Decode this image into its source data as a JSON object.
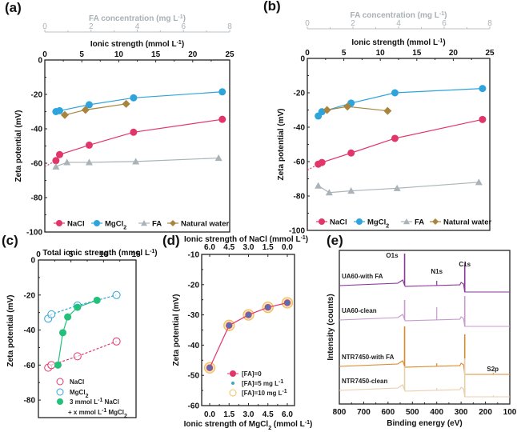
{
  "colors": {
    "nacl": "#e2366a",
    "mgcl2": "#2ea4dc",
    "fa": "#a9b3b8",
    "natural_water": "#a8843c",
    "mix": "#22c07a",
    "fa5": "#3aa6c8",
    "fa10": "#f0c060",
    "fa0_marker": "#5a6fb0",
    "ua60_with_fa": "#8a3a9a",
    "ua60_clean": "#c89ad0",
    "ntr_with_fa": "#d98b30",
    "ntr_clean": "#e8cfae"
  },
  "chart_data": [
    {
      "panel": "(a)",
      "type": "line",
      "xlabel": "Ionic strength (mmol L-1)",
      "xlabel_parts": [
        "Ionic strength (mmol L",
        "-1",
        ")"
      ],
      "x2label_parts": [
        "FA concentration (mg L",
        "-1",
        ")"
      ],
      "ylabel": "Zeta potential (mV)",
      "xlim": [
        0,
        25
      ],
      "x2lim": [
        0,
        8
      ],
      "ylim": [
        -100,
        0
      ],
      "xticks": [
        "0",
        "5",
        "10",
        "15",
        "20",
        "25"
      ],
      "x2ticks": [
        "0",
        "2",
        "4",
        "6",
        "8"
      ],
      "yticks": [
        "0",
        "-20",
        "-40",
        "-60",
        "-80",
        "-100"
      ],
      "legend_position": "bottom",
      "legend": [
        "NaCl",
        "MgCl2",
        "FA",
        "Natural water"
      ],
      "series": [
        {
          "name": "NaCl",
          "x": [
            1.5,
            2,
            6,
            12,
            24
          ],
          "y": [
            -58.5,
            -55,
            -49.5,
            -42,
            -34.5
          ]
        },
        {
          "name": "MgCl2",
          "x": [
            1.5,
            2,
            6,
            12,
            24
          ],
          "y": [
            -30,
            -29.5,
            -26,
            -22,
            -18.5
          ]
        },
        {
          "name": "FA",
          "x": [
            1.5,
            3,
            6,
            12.3,
            23.5
          ],
          "y": [
            -62,
            -59.5,
            -59.5,
            -59,
            -57
          ]
        },
        {
          "name": "Natural water",
          "x": [
            2.7,
            5.5,
            11
          ],
          "y": [
            -32,
            -29,
            -25.5
          ]
        }
      ]
    },
    {
      "panel": "(b)",
      "type": "line",
      "xlabel": "Ionic strength (mmol L-1)",
      "xlabel_parts": [
        "Ionic strength (mmol L",
        "-1",
        ")"
      ],
      "x2label_parts": [
        "FA concentration (mg L",
        "-1",
        ")"
      ],
      "ylabel": "Zeta potential (mV)",
      "xlim": [
        0,
        25
      ],
      "x2lim": [
        0,
        8
      ],
      "ylim": [
        -100,
        0
      ],
      "xticks": [
        "0",
        "5",
        "10",
        "15",
        "20",
        "25"
      ],
      "x2ticks": [
        "0",
        "2",
        "4",
        "6",
        "8"
      ],
      "yticks": [
        "0",
        "-20",
        "-40",
        "-60",
        "-80",
        "-100"
      ],
      "legend_position": "bottom",
      "legend": [
        "NaCl",
        "MgCl2",
        "FA",
        "Natural water"
      ],
      "series": [
        {
          "name": "NaCl",
          "x": [
            1.5,
            2,
            6,
            12,
            24
          ],
          "y": [
            -61.5,
            -60.5,
            -55,
            -46.5,
            -35.5
          ]
        },
        {
          "name": "MgCl2",
          "x": [
            1.5,
            2,
            6,
            12,
            24
          ],
          "y": [
            -33.5,
            -31,
            -26,
            -20,
            -17.5
          ]
        },
        {
          "name": "FA",
          "x": [
            1.5,
            3,
            6,
            12.3,
            23.5
          ],
          "y": [
            -74,
            -78,
            -77,
            -75.5,
            -72
          ]
        },
        {
          "name": "Natural water",
          "x": [
            2.7,
            5.5,
            11
          ],
          "y": [
            -30,
            -28,
            -30.5
          ]
        }
      ]
    },
    {
      "panel": "(c)",
      "type": "line",
      "xlabel_parts": [
        "Total ionic strength (mmol L",
        "-1",
        ")"
      ],
      "ylabel": "Zeta potential (mV)",
      "xlim": [
        0,
        15
      ],
      "ylim": [
        -90,
        0
      ],
      "xticks": [
        "0",
        "5",
        "10",
        "15"
      ],
      "yticks": [
        "0",
        "-20",
        "-40",
        "-60",
        "-80"
      ],
      "legend_position": "bottom-left",
      "legend": [
        "NaCl",
        "MgCl2",
        "3 mmol L-1 NaCl + x mmol L-1 MgCl2"
      ],
      "series": [
        {
          "name": "NaCl",
          "x": [
            1.5,
            2,
            6,
            12
          ],
          "y": [
            -61.5,
            -60,
            -55,
            -46.5
          ],
          "style": "dashed-open"
        },
        {
          "name": "MgCl2",
          "x": [
            1.5,
            2,
            6,
            12
          ],
          "y": [
            -33.5,
            -31,
            -26,
            -20
          ],
          "style": "dashed-open"
        },
        {
          "name": "3 mmol L-1 NaCl + x mmol L-1 MgCl2",
          "x": [
            3,
            3.75,
            4.5,
            6,
            9
          ],
          "y": [
            -60,
            -41.5,
            -32.5,
            -27,
            -23
          ],
          "style": "solid-filled"
        }
      ]
    },
    {
      "panel": "(d)",
      "type": "line",
      "xlabel_parts": [
        "Ionic strength of MgCl",
        "2",
        " (mmol L",
        "-1",
        ")"
      ],
      "x2label_parts": [
        "Ionic strength of NaCl (mmol L",
        "-1",
        ")"
      ],
      "ylabel": "Zeta potential (mV)",
      "xlim": [
        0,
        6
      ],
      "ylim": [
        -60,
        -10
      ],
      "xticks": [
        "0.0",
        "1.5",
        "3.0",
        "4.5",
        "6.0"
      ],
      "x2ticks": [
        "6.0",
        "4.5",
        "3.0",
        "1.5",
        "0.0"
      ],
      "yticks": [
        "-10",
        "-20",
        "-30",
        "-40",
        "-50",
        "-60"
      ],
      "legend_position": "bottom-right",
      "legend": [
        "[FA]=0",
        "[FA]=5 mg L-1",
        "[FA]=10 mg L-1"
      ],
      "series": [
        {
          "name": "[FA]=0",
          "x": [
            0,
            1.5,
            3,
            4.5,
            6
          ],
          "y": [
            -47.5,
            -33.5,
            -30,
            -27.5,
            -26
          ]
        },
        {
          "name": "[FA]=5 mg L-1",
          "x": [
            0,
            1.5,
            3,
            4.5,
            6
          ],
          "y": [
            -47.5,
            -33.5,
            -30,
            -27.5,
            -26
          ]
        },
        {
          "name": "[FA]=10 mg L-1",
          "x": [
            0,
            1.5,
            3,
            4.5,
            6
          ],
          "y": [
            -47.5,
            -33.5,
            -30,
            -27.5,
            -26
          ]
        }
      ]
    },
    {
      "panel": "(e)",
      "type": "line",
      "xlabel": "Binding energy (eV)",
      "ylabel": "Intensity (counts)",
      "xlim": [
        800,
        100
      ],
      "xticks": [
        "800",
        "700",
        "600",
        "500",
        "400",
        "300",
        "200",
        "100"
      ],
      "peak_labels": [
        "O1s",
        "N1s",
        "C1s",
        "S2p"
      ],
      "series": [
        {
          "name": "UA60-with FA"
        },
        {
          "name": "UA60-clean"
        },
        {
          "name": "NTR7450-with FA"
        },
        {
          "name": "NTR7450-clean"
        }
      ]
    }
  ]
}
